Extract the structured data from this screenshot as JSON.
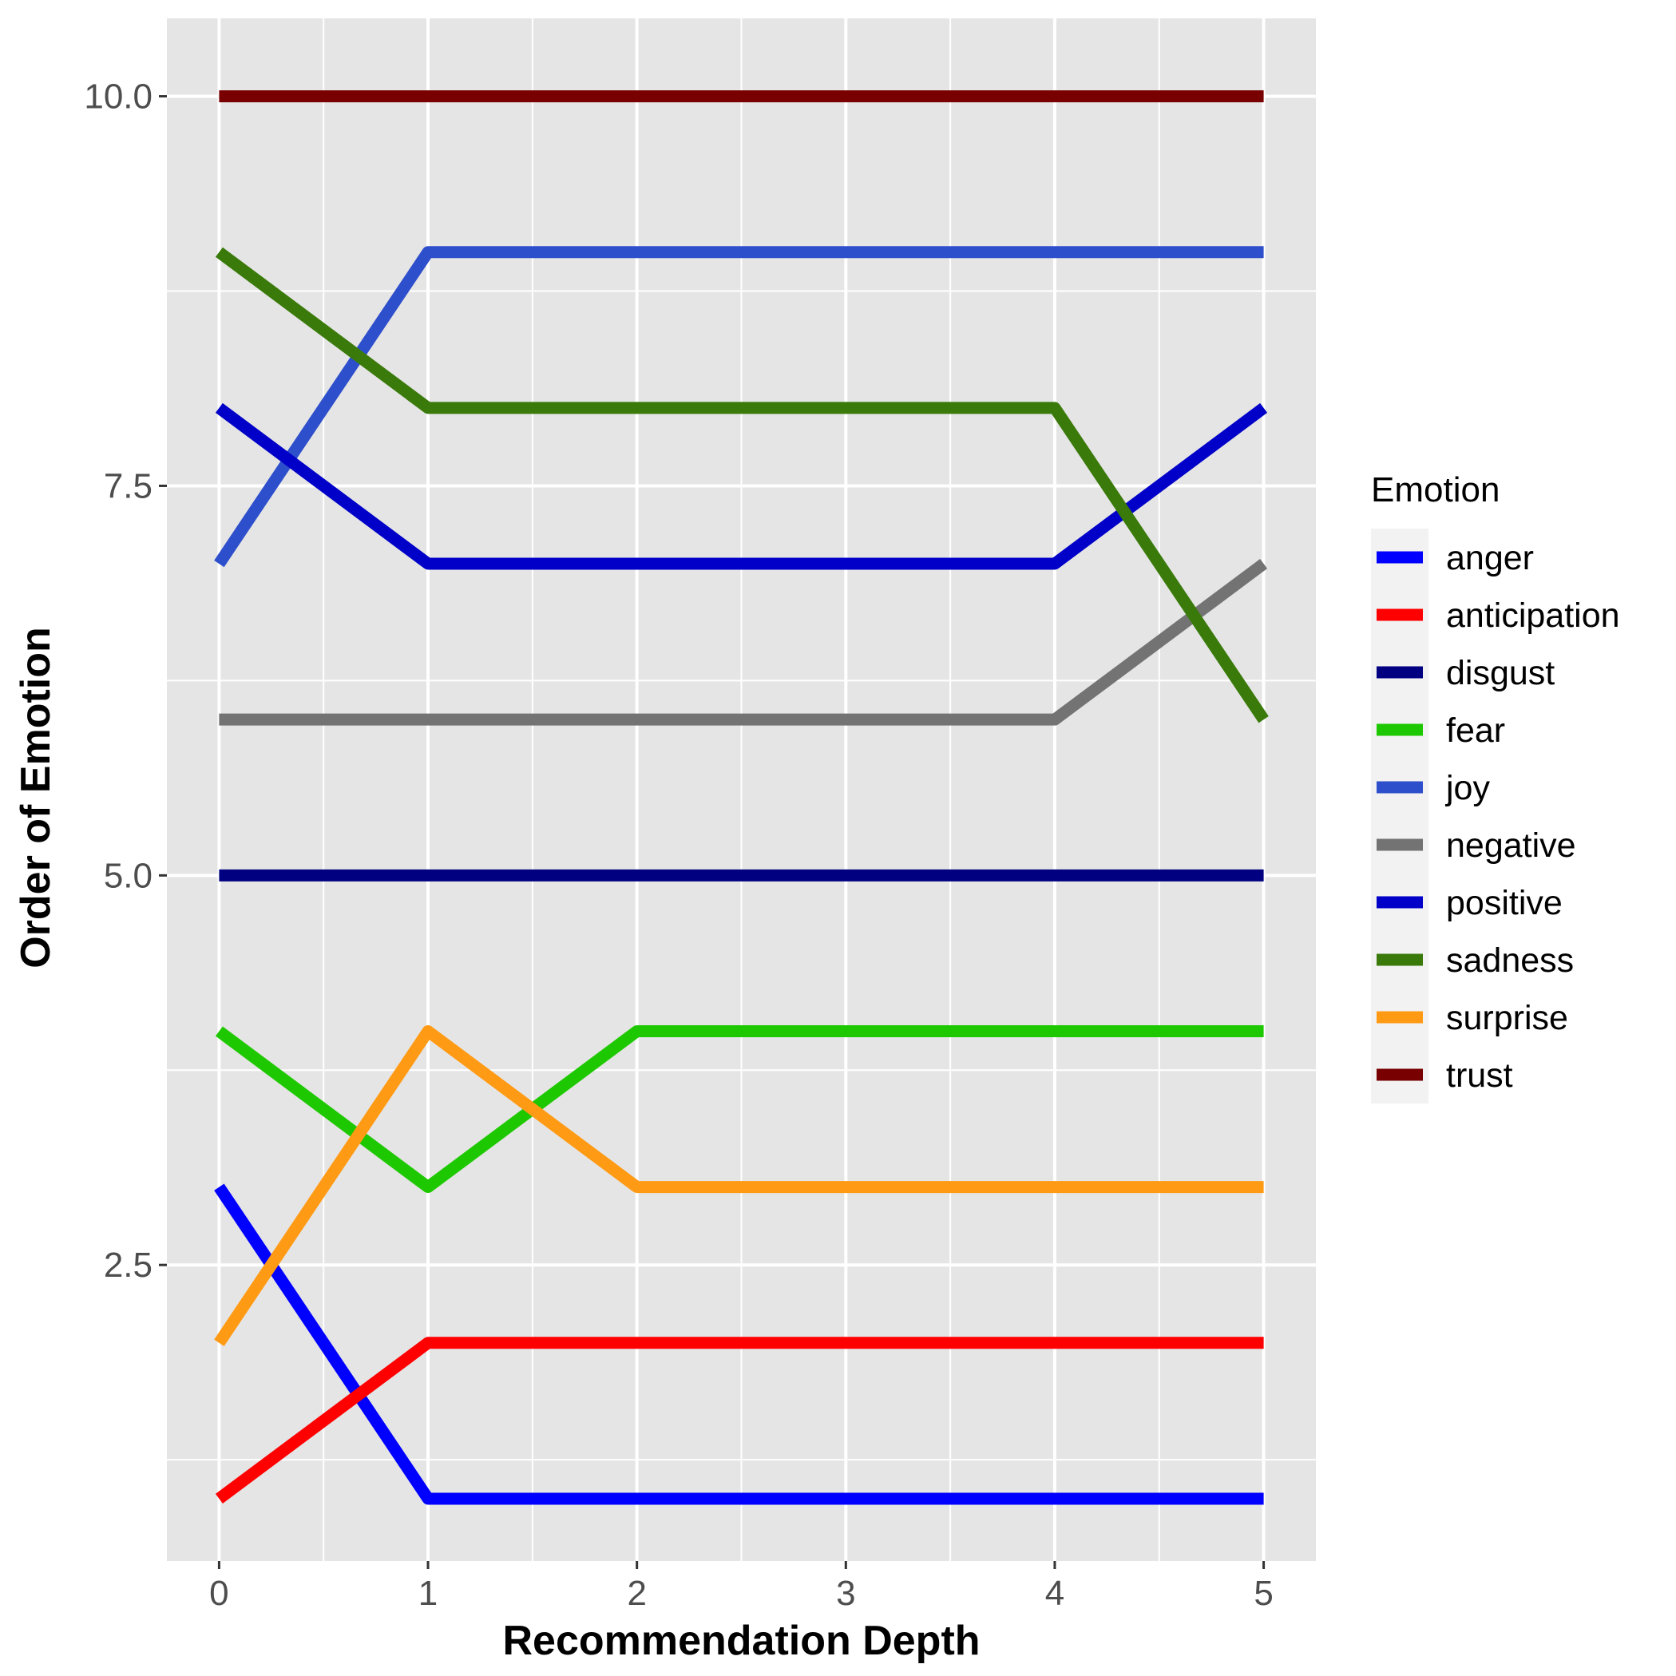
{
  "chart_data": {
    "type": "line",
    "xlabel": "Recommendation Depth",
    "ylabel": "Order of Emotion",
    "x": [
      0,
      1,
      2,
      3,
      4,
      5
    ],
    "xlim": [
      -0.25,
      5.25
    ],
    "ylim": [
      0.6,
      10.5
    ],
    "xticks": [
      0,
      1,
      2,
      3,
      4,
      5
    ],
    "xtick_labels": [
      "0",
      "1",
      "2",
      "3",
      "4",
      "5"
    ],
    "yticks": [
      2.5,
      5.0,
      7.5,
      10.0
    ],
    "ytick_labels": [
      "2.5",
      "5.0",
      "7.5",
      "10.0"
    ],
    "grid": true,
    "background": "#e5e5e5",
    "legend": {
      "title": "Emotion",
      "position": "right"
    },
    "series": [
      {
        "name": "anger",
        "color": "#0000ff",
        "values": [
          3,
          1,
          1,
          1,
          1,
          1
        ]
      },
      {
        "name": "anticipation",
        "color": "#ff0000",
        "values": [
          1,
          2,
          2,
          2,
          2,
          2
        ]
      },
      {
        "name": "disgust",
        "color": "#000080",
        "values": [
          5,
          5,
          5,
          5,
          5,
          5
        ]
      },
      {
        "name": "fear",
        "color": "#1ec800",
        "values": [
          4,
          3,
          4,
          4,
          4,
          4
        ]
      },
      {
        "name": "joy",
        "color": "#2e4fcc",
        "values": [
          7,
          9,
          9,
          9,
          9,
          9
        ]
      },
      {
        "name": "negative",
        "color": "#737373",
        "values": [
          6,
          6,
          6,
          6,
          6,
          7
        ]
      },
      {
        "name": "positive",
        "color": "#0000c8",
        "values": [
          8,
          7,
          7,
          7,
          7,
          8
        ]
      },
      {
        "name": "sadness",
        "color": "#3a7a0a",
        "values": [
          9,
          8,
          8,
          8,
          8,
          6
        ]
      },
      {
        "name": "surprise",
        "color": "#ff9a14",
        "values": [
          2,
          4,
          3,
          3,
          3,
          3
        ]
      },
      {
        "name": "trust",
        "color": "#780000",
        "values": [
          10,
          10,
          10,
          10,
          10,
          10
        ]
      }
    ]
  }
}
